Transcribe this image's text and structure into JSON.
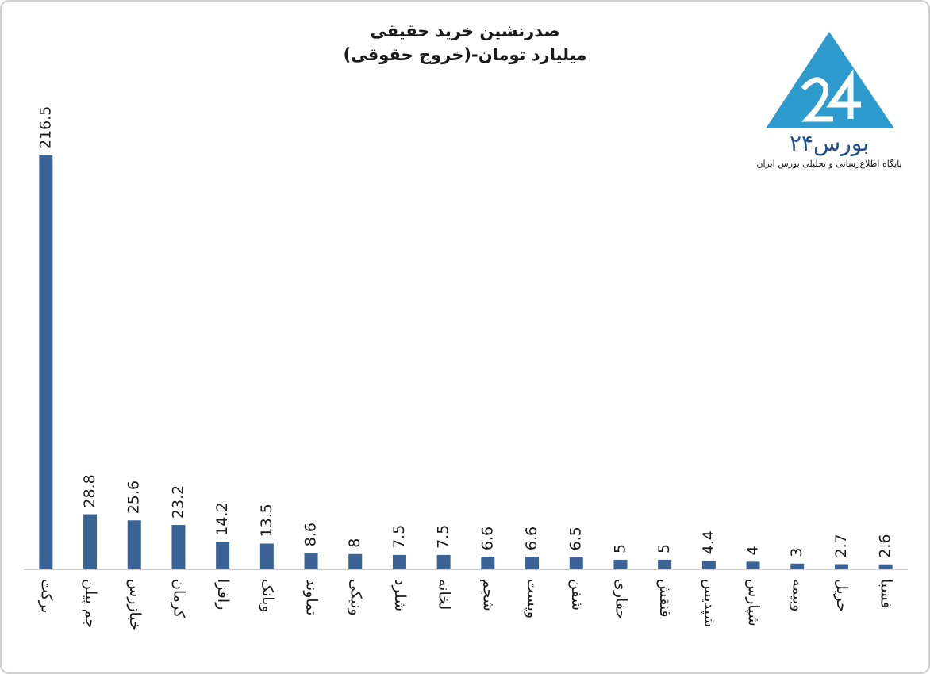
{
  "chart_data": {
    "type": "bar",
    "title": "صدرنشین خرید حقیقی",
    "subtitle": "(خروج حقوقی)-میلیارد تومان",
    "logo_title": "بورس۲۴",
    "logo_subtitle": "پایگاه اطلاع‌رسانی و تحلیلی بورس ایران",
    "categories": [
      "برکت",
      "جم پیلن",
      "خبازرس",
      "کرمان",
      "رافزا",
      "وبانک",
      "تماوند",
      "ونیکی",
      "شلرد",
      "لخانه",
      "شجم",
      "وپست",
      "شفن",
      "حفاری",
      "قنقش",
      "شپدیس",
      "شپارس",
      "وبیمه",
      "حریل",
      "فسبا"
    ],
    "values": [
      216.5,
      28.8,
      25.6,
      23.2,
      14.2,
      13.5,
      8.6,
      8,
      7.5,
      7.5,
      6.6,
      6.6,
      6.5,
      5,
      5,
      4.4,
      4,
      3,
      2.7,
      2.6
    ],
    "color": "#3b6396"
  }
}
